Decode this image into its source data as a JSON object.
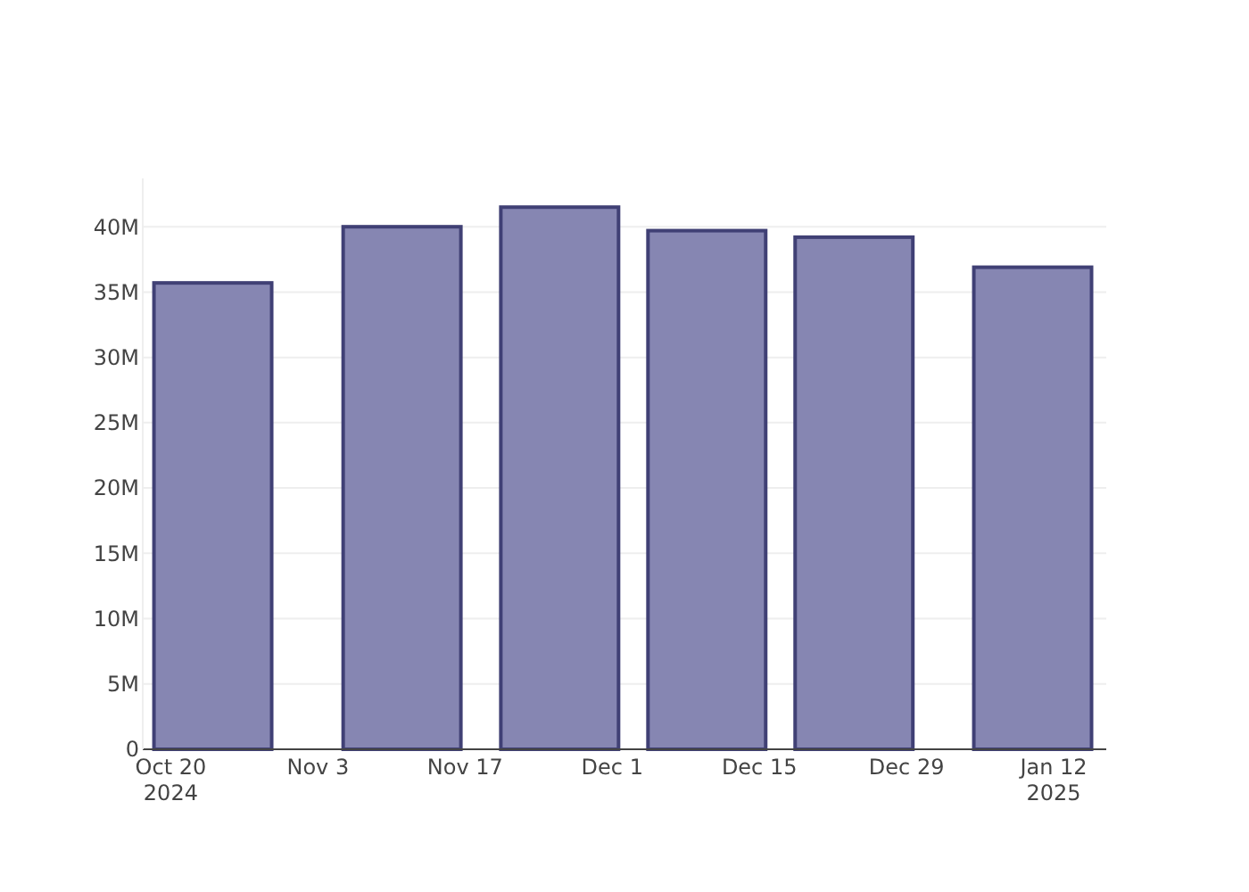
{
  "chart_data": {
    "type": "bar",
    "x": [
      "2024-10-24",
      "2024-11-11",
      "2024-11-26",
      "2024-12-10",
      "2024-12-24",
      "2025-01-10"
    ],
    "values": [
      35.7,
      40.0,
      41.5,
      39.7,
      39.2,
      36.9
    ],
    "color": "#7f7fae",
    "xlim": [
      "2024-10-17T08:00",
      "2025-01-17"
    ],
    "xticks": [
      {
        "value": "2024-10-20",
        "label": "Oct 20\n2024"
      },
      {
        "value": "2024-11-03",
        "label": "Nov 3"
      },
      {
        "value": "2024-11-17",
        "label": "Nov 17"
      },
      {
        "value": "2024-12-01",
        "label": "Dec 1"
      },
      {
        "value": "2024-12-15",
        "label": "Dec 15"
      },
      {
        "value": "2024-12-29",
        "label": "Dec 29"
      },
      {
        "value": "2025-01-12",
        "label": "Jan 12\n2025"
      }
    ],
    "ylim": [
      0,
      43.7
    ],
    "yticks": [
      {
        "value": 0,
        "label": "0"
      },
      {
        "value": 5,
        "label": "5M"
      },
      {
        "value": 10,
        "label": "10M"
      },
      {
        "value": 15,
        "label": "15M"
      },
      {
        "value": 20,
        "label": "20M"
      },
      {
        "value": 25,
        "label": "25M"
      },
      {
        "value": 30,
        "label": "30M"
      },
      {
        "value": 35,
        "label": "35M"
      },
      {
        "value": 40,
        "label": "40M"
      }
    ],
    "grid": "y"
  }
}
